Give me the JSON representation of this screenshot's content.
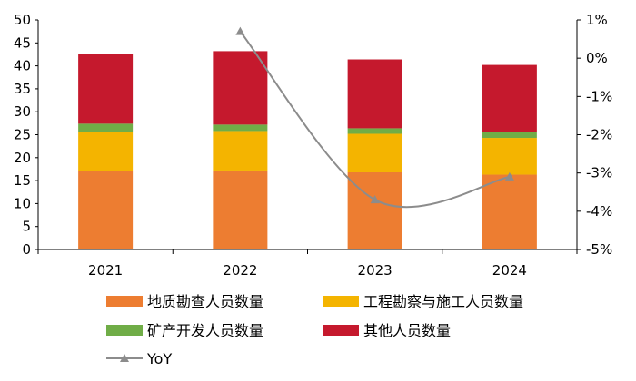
{
  "chart_data": {
    "type": "bar",
    "stacked": true,
    "categories": [
      "2021",
      "2022",
      "2023",
      "2024"
    ],
    "series": [
      {
        "name": "地质勘查人员数量",
        "color": "#ED7D31",
        "values": [
          17.0,
          17.2,
          16.8,
          16.3
        ]
      },
      {
        "name": "工程勘察与施工人员数量",
        "color": "#F4B400",
        "values": [
          8.6,
          8.6,
          8.4,
          8.0
        ]
      },
      {
        "name": "矿产开发人员数量",
        "color": "#70AD47",
        "values": [
          1.8,
          1.4,
          1.2,
          1.2
        ]
      },
      {
        "name": "其他人员数量",
        "color": "#C5192D",
        "values": [
          15.2,
          16.0,
          15.0,
          14.7
        ]
      }
    ],
    "line_series": {
      "name": "YoY",
      "color": "#8C8C8C",
      "values": [
        null,
        0.7,
        -3.7,
        -3.1
      ]
    },
    "ylim_left": [
      0,
      50
    ],
    "yticks_left": [
      0,
      5,
      10,
      15,
      20,
      25,
      30,
      35,
      40,
      45,
      50
    ],
    "ylim_right": [
      -5,
      1
    ],
    "yticks_right": [
      "-5%",
      "-4%",
      "-3%",
      "-2%",
      "-1%",
      "0%",
      "1%"
    ],
    "legend": "bottom",
    "grid": false
  }
}
